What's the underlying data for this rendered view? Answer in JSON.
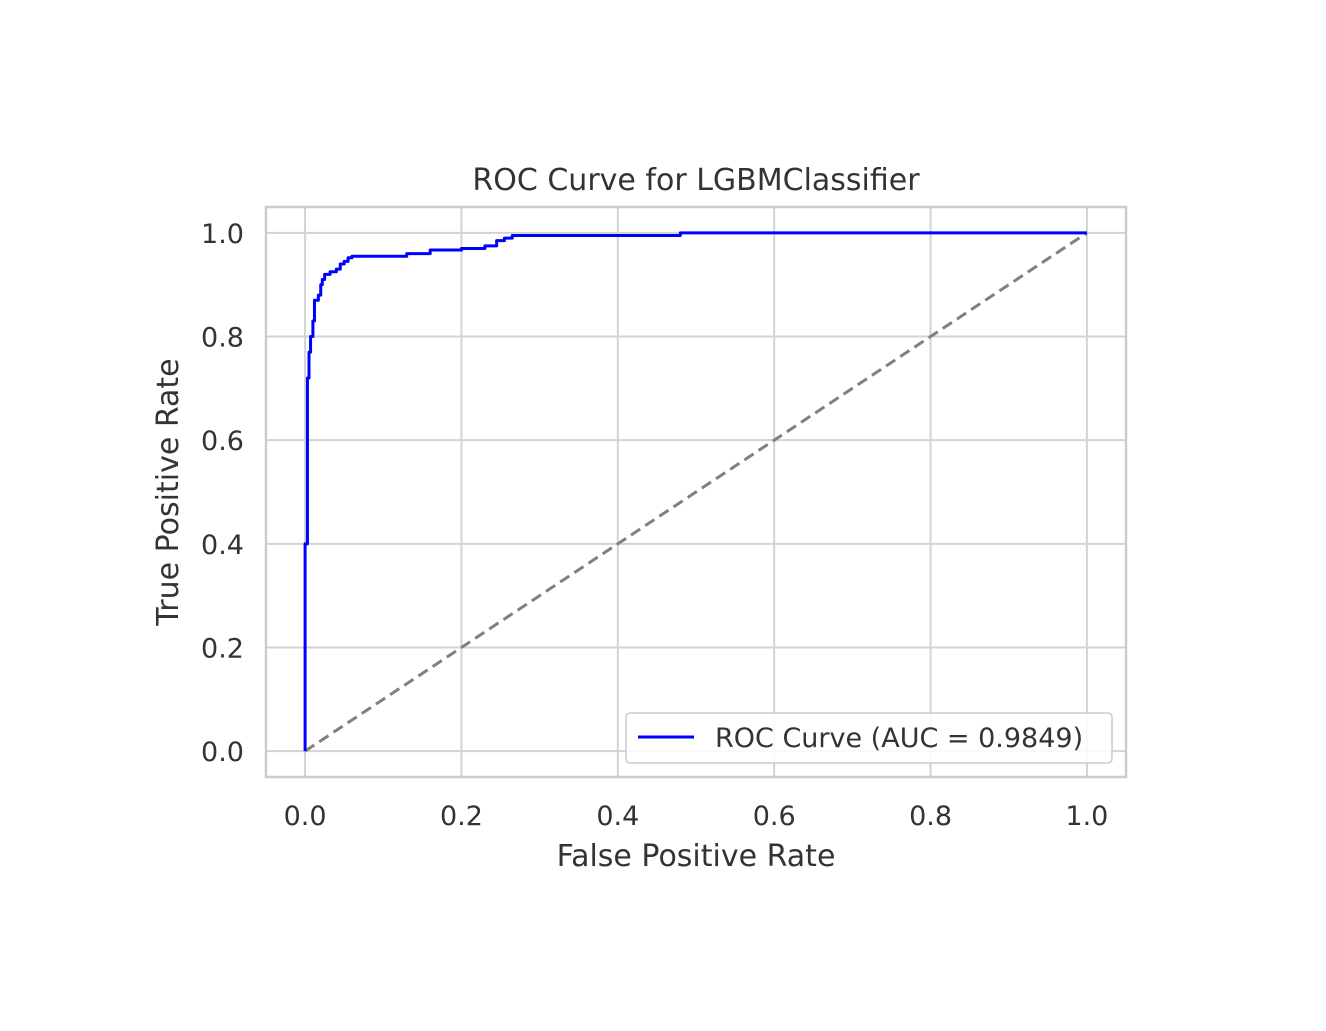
{
  "chart_data": {
    "type": "line",
    "title": "ROC Curve for LGBMClassifier",
    "xlabel": "False Positive Rate",
    "ylabel": "True Positive Rate",
    "xlim": [
      -0.05,
      1.05
    ],
    "ylim": [
      -0.05,
      1.05
    ],
    "xticks": [
      0.0,
      0.2,
      0.4,
      0.6,
      0.8,
      1.0
    ],
    "xtick_labels": [
      "0.0",
      "0.2",
      "0.4",
      "0.6",
      "0.8",
      "1.0"
    ],
    "yticks": [
      0.0,
      0.2,
      0.4,
      0.6,
      0.8,
      1.0
    ],
    "ytick_labels": [
      "0.0",
      "0.2",
      "0.4",
      "0.6",
      "0.8",
      "1.0"
    ],
    "grid": true,
    "legend_position": "lower-right",
    "series": [
      {
        "name": "ROC Curve (AUC = 0.9849)",
        "color": "#0000ff",
        "style": "solid",
        "points": [
          [
            0.0,
            0.0
          ],
          [
            0.0,
            0.4
          ],
          [
            0.003,
            0.4
          ],
          [
            0.003,
            0.72
          ],
          [
            0.005,
            0.72
          ],
          [
            0.005,
            0.77
          ],
          [
            0.007,
            0.77
          ],
          [
            0.007,
            0.8
          ],
          [
            0.01,
            0.8
          ],
          [
            0.01,
            0.83
          ],
          [
            0.012,
            0.83
          ],
          [
            0.012,
            0.87
          ],
          [
            0.017,
            0.87
          ],
          [
            0.017,
            0.88
          ],
          [
            0.02,
            0.88
          ],
          [
            0.02,
            0.9
          ],
          [
            0.022,
            0.9
          ],
          [
            0.022,
            0.91
          ],
          [
            0.025,
            0.91
          ],
          [
            0.025,
            0.92
          ],
          [
            0.032,
            0.92
          ],
          [
            0.032,
            0.925
          ],
          [
            0.04,
            0.925
          ],
          [
            0.04,
            0.93
          ],
          [
            0.045,
            0.93
          ],
          [
            0.045,
            0.94
          ],
          [
            0.05,
            0.94
          ],
          [
            0.05,
            0.945
          ],
          [
            0.055,
            0.945
          ],
          [
            0.055,
            0.952
          ],
          [
            0.06,
            0.952
          ],
          [
            0.06,
            0.955
          ],
          [
            0.13,
            0.955
          ],
          [
            0.13,
            0.96
          ],
          [
            0.16,
            0.96
          ],
          [
            0.16,
            0.967
          ],
          [
            0.2,
            0.967
          ],
          [
            0.2,
            0.97
          ],
          [
            0.23,
            0.97
          ],
          [
            0.23,
            0.975
          ],
          [
            0.245,
            0.975
          ],
          [
            0.245,
            0.985
          ],
          [
            0.255,
            0.985
          ],
          [
            0.255,
            0.99
          ],
          [
            0.265,
            0.99
          ],
          [
            0.265,
            0.995
          ],
          [
            0.48,
            0.995
          ],
          [
            0.48,
            1.0
          ],
          [
            1.0,
            1.0
          ]
        ]
      },
      {
        "name": "",
        "color": "#808080",
        "style": "dashed",
        "points": [
          [
            0.0,
            0.0
          ],
          [
            1.0,
            1.0
          ]
        ]
      }
    ],
    "colors": {
      "text": "#333333",
      "grid": "#d3d3d3",
      "frame": "#cccccc"
    }
  }
}
